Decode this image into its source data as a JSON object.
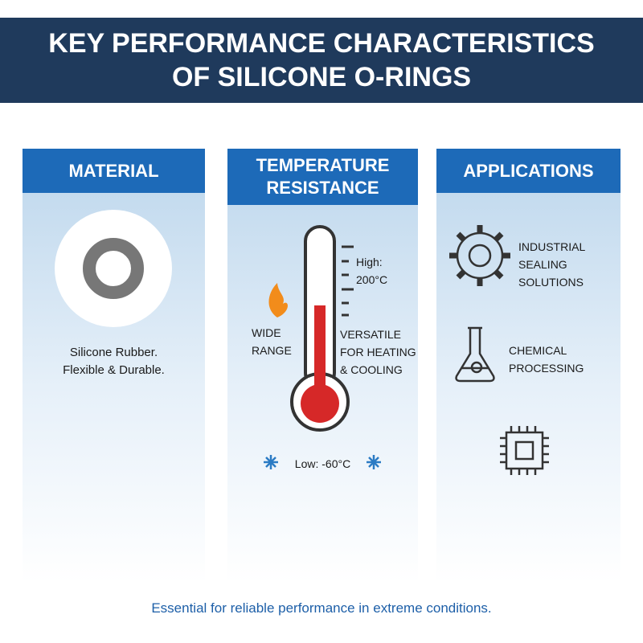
{
  "header": {
    "title": "KEY PERFORMANCE CHARACTERISTICS OF SILICONE O-RINGS"
  },
  "panels": [
    {
      "title": "MATERIAL",
      "description": [
        "Silicone Rubber.",
        "Flexible & Durable."
      ]
    },
    {
      "title": "TEMPERATURE RESISTANCE",
      "high": "High: 200°C",
      "left_note": "WIDE RANGE",
      "right_note": "VERSATILE FOR HEATING & COOLING",
      "low": "Low: -60°C"
    },
    {
      "title": "APPLICATIONS",
      "items": [
        "INDUSTRIAL SEALING SOLUTIONS",
        "CHEMICAL PROCESSING"
      ]
    }
  ],
  "footer": "Essential for reliable performance in extreme conditions."
}
